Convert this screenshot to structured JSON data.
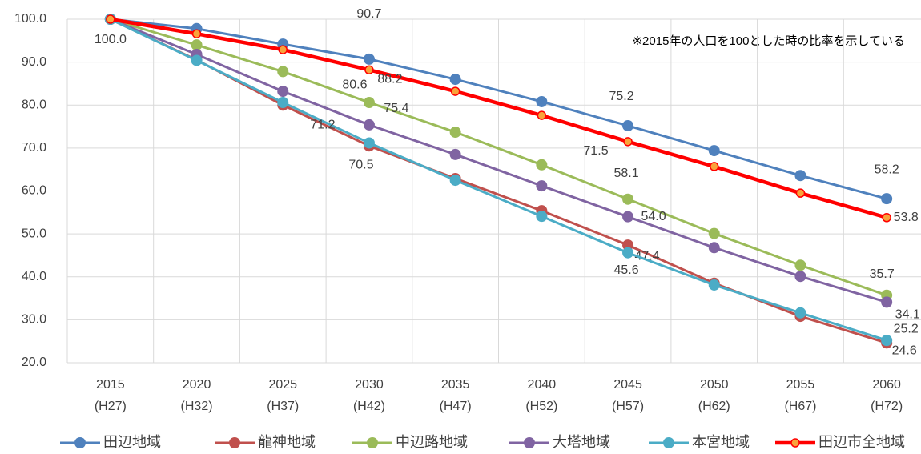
{
  "chart_data": {
    "type": "line",
    "annotation": "※2015年の人口を100とした時の比率を示している",
    "categories": [
      "2015",
      "2020",
      "2025",
      "2030",
      "2035",
      "2040",
      "2045",
      "2050",
      "2055",
      "2060"
    ],
    "categories_sub": [
      "(H27)",
      "(H32)",
      "(H37)",
      "(H42)",
      "(H47)",
      "(H52)",
      "(H57)",
      "(H62)",
      "(H67)",
      "(H72)"
    ],
    "ylim": [
      20,
      100
    ],
    "yticks": [
      {
        "value": 20,
        "label": "20.0"
      },
      {
        "value": 30,
        "label": "30.0"
      },
      {
        "value": 40,
        "label": "40.0"
      },
      {
        "value": 50,
        "label": "50.0"
      },
      {
        "value": 60,
        "label": "60.0"
      },
      {
        "value": 70,
        "label": "70.0"
      },
      {
        "value": 80,
        "label": "80.0"
      },
      {
        "value": 90,
        "label": "90.0"
      },
      {
        "value": 100,
        "label": "100.0"
      }
    ],
    "grid": true,
    "legend": "bottom",
    "series": [
      {
        "name": "田辺地域",
        "color": "#4f81bd",
        "values": [
          100,
          97.8,
          94.2,
          90.7,
          86.0,
          80.8,
          75.2,
          69.4,
          63.6,
          58.2
        ],
        "value_labels": [
          "100.0",
          null,
          null,
          "90.7",
          null,
          null,
          "75.2",
          null,
          null,
          "58.2"
        ]
      },
      {
        "name": "龍神地域",
        "color": "#c0504d",
        "values": [
          100,
          90.5,
          80.0,
          70.5,
          62.9,
          55.4,
          47.4,
          38.5,
          30.8,
          24.6
        ],
        "value_labels": [
          null,
          null,
          null,
          "70.5",
          null,
          null,
          "47.4",
          null,
          null,
          "24.6"
        ]
      },
      {
        "name": "中辺路地域",
        "color": "#9bbb59",
        "values": [
          100,
          94.0,
          87.8,
          80.6,
          73.7,
          66.1,
          58.1,
          50.1,
          42.7,
          35.7
        ],
        "value_labels": [
          null,
          null,
          null,
          "80.6",
          null,
          null,
          "58.1",
          null,
          null,
          "35.7"
        ]
      },
      {
        "name": "大塔地域",
        "color": "#8064a2",
        "values": [
          100,
          91.8,
          83.2,
          75.4,
          68.5,
          61.2,
          54.0,
          46.8,
          40.1,
          34.1
        ],
        "value_labels": [
          null,
          null,
          null,
          "75.4",
          null,
          null,
          "54.0",
          null,
          null,
          "34.1"
        ]
      },
      {
        "name": "本宮地域",
        "color": "#4bacc6",
        "values": [
          100,
          90.4,
          80.6,
          71.2,
          62.5,
          54.1,
          45.6,
          38.1,
          31.6,
          25.2
        ],
        "value_labels": [
          null,
          null,
          null,
          "71.2",
          null,
          null,
          "45.6",
          null,
          null,
          "25.2"
        ]
      },
      {
        "name": "田辺市全地域",
        "color": "#ff0000",
        "marker_color": "#f9a33b",
        "values": [
          100,
          96.6,
          92.9,
          88.2,
          83.2,
          77.6,
          71.5,
          65.7,
          59.5,
          53.8
        ],
        "value_labels": [
          null,
          null,
          null,
          "88.2",
          null,
          null,
          "71.5",
          null,
          null,
          "53.8"
        ]
      }
    ]
  }
}
